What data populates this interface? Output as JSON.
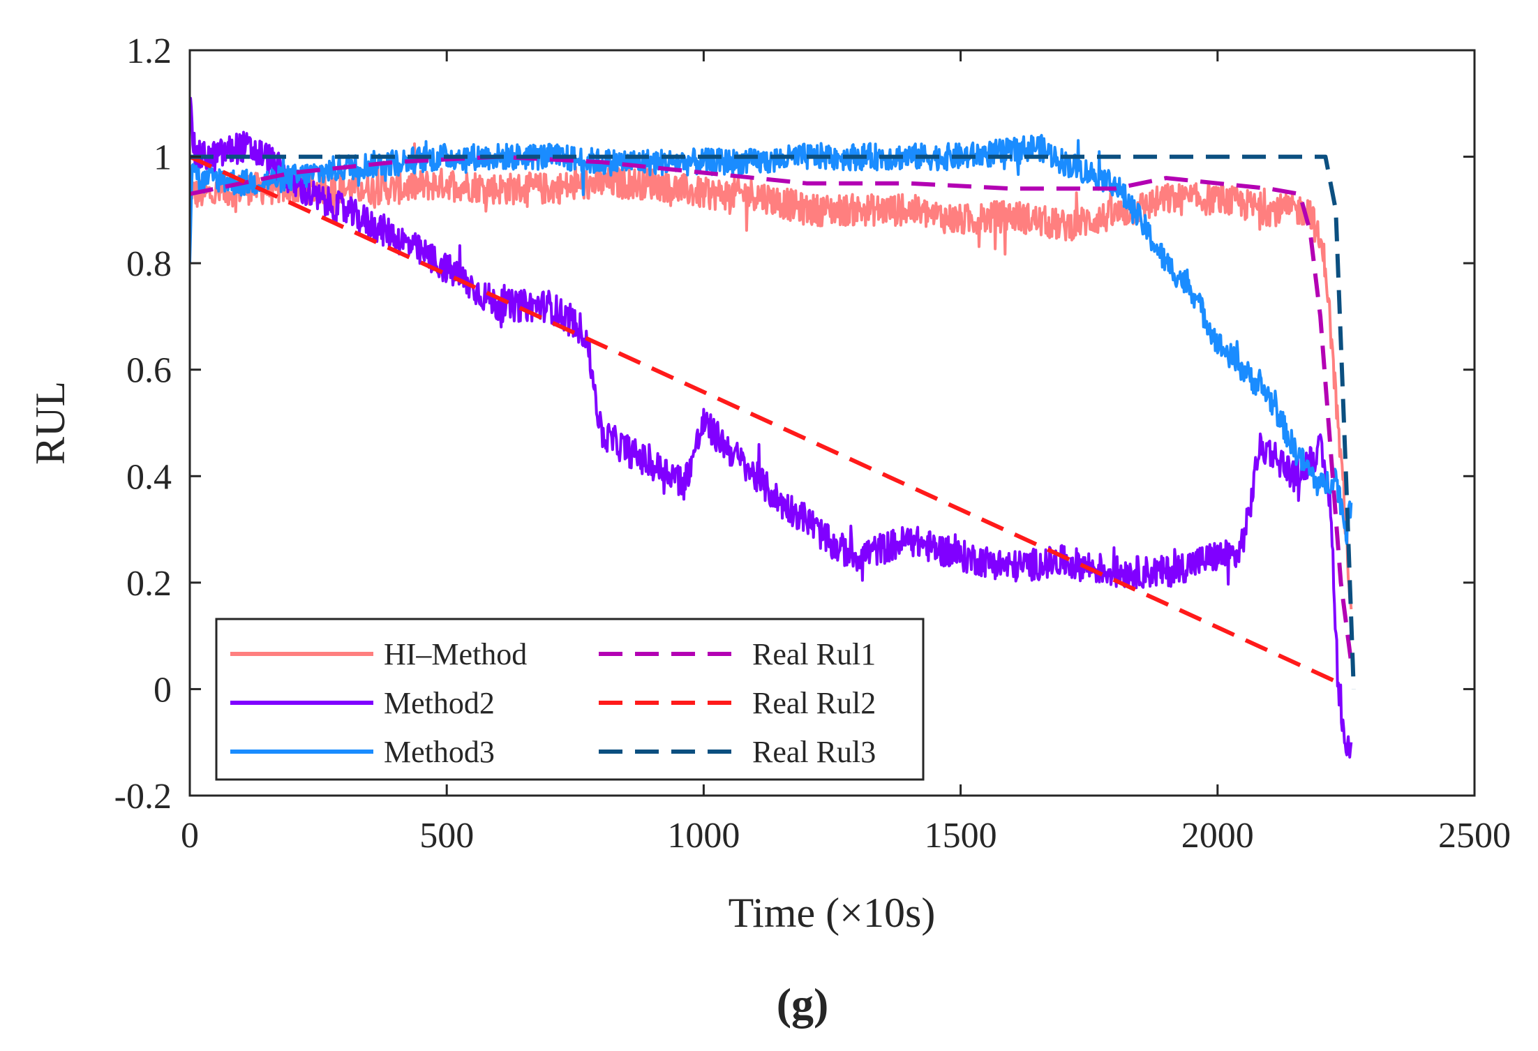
{
  "chart_data": {
    "type": "line",
    "title": "",
    "caption": "(g)",
    "xlabel": "Time (×10s)",
    "ylabel": "RUL",
    "xlim": [
      0,
      2500
    ],
    "ylim": [
      -0.2,
      1.2
    ],
    "xticks": [
      0,
      500,
      1000,
      1500,
      2000,
      2500
    ],
    "yticks": [
      -0.2,
      0,
      0.2,
      0.4,
      0.6,
      0.8,
      1,
      1.2
    ],
    "xtick_labels": [
      "0",
      "500",
      "1000",
      "1500",
      "2000",
      "2500"
    ],
    "ytick_labels": [
      "-0.2",
      "0",
      "0.2",
      "0.4",
      "0.6",
      "0.8",
      "1",
      "1.2"
    ],
    "grid": false,
    "legend_position": "bottom-left",
    "series": [
      {
        "name": "HI–Method",
        "style": "solid",
        "color": "#ff7f7f",
        "noise": 0.03,
        "x": [
          0,
          10,
          50,
          100,
          200,
          300,
          400,
          500,
          600,
          700,
          800,
          900,
          1000,
          1100,
          1200,
          1300,
          1400,
          1500,
          1600,
          1700,
          1800,
          1900,
          2000,
          2100,
          2180,
          2210,
          2230,
          2250,
          2260
        ],
        "y": [
          0.95,
          0.93,
          0.93,
          0.94,
          0.94,
          0.94,
          0.94,
          0.95,
          0.94,
          0.94,
          0.95,
          0.95,
          0.93,
          0.93,
          0.9,
          0.9,
          0.9,
          0.88,
          0.89,
          0.87,
          0.89,
          0.92,
          0.92,
          0.9,
          0.9,
          0.8,
          0.55,
          0.3,
          0.15
        ]
      },
      {
        "name": "Method2",
        "style": "solid",
        "color": "#8000ff",
        "noise": 0.03,
        "x": [
          0,
          10,
          50,
          100,
          150,
          200,
          250,
          300,
          400,
          500,
          600,
          700,
          770,
          790,
          800,
          850,
          900,
          950,
          960,
          1000,
          1050,
          1100,
          1150,
          1200,
          1250,
          1300,
          1400,
          1500,
          1600,
          1700,
          1800,
          1900,
          2000,
          2040,
          2060,
          2080,
          2100,
          2150,
          2200,
          2220,
          2235,
          2250,
          2260
        ],
        "y": [
          1.1,
          1.0,
          1.0,
          1.02,
          1.0,
          0.95,
          0.92,
          0.9,
          0.85,
          0.79,
          0.72,
          0.72,
          0.67,
          0.55,
          0.48,
          0.45,
          0.42,
          0.4,
          0.38,
          0.5,
          0.45,
          0.4,
          0.35,
          0.32,
          0.27,
          0.25,
          0.28,
          0.25,
          0.23,
          0.24,
          0.22,
          0.22,
          0.25,
          0.25,
          0.32,
          0.45,
          0.45,
          0.4,
          0.45,
          0.35,
          0.0,
          -0.12,
          -0.1
        ]
      },
      {
        "name": "Method3",
        "style": "solid",
        "color": "#1a8cff",
        "noise": 0.025,
        "x": [
          0,
          5,
          20,
          50,
          100,
          200,
          300,
          400,
          500,
          600,
          700,
          800,
          900,
          1000,
          1100,
          1200,
          1300,
          1400,
          1500,
          1600,
          1650,
          1700,
          1750,
          1800,
          1850,
          1900,
          1950,
          2000,
          2050,
          2100,
          2150,
          2200,
          2230,
          2250,
          2260
        ],
        "y": [
          0.82,
          1.0,
          0.95,
          0.96,
          0.95,
          0.96,
          0.98,
          0.99,
          1.0,
          1.0,
          1.0,
          0.99,
          0.99,
          0.99,
          0.99,
          1.0,
          1.0,
          1.0,
          1.0,
          1.01,
          1.02,
          0.99,
          0.97,
          0.95,
          0.88,
          0.8,
          0.75,
          0.65,
          0.6,
          0.55,
          0.45,
          0.38,
          0.4,
          0.3,
          0.35
        ]
      },
      {
        "name": "Real Rul1",
        "style": "dashed",
        "color": "#b300b3",
        "noise": 0,
        "x": [
          0,
          50,
          200,
          400,
          600,
          800,
          1000,
          1200,
          1400,
          1600,
          1800,
          1900,
          2000,
          2100,
          2160,
          2180,
          2200,
          2220,
          2240,
          2260
        ],
        "y": [
          0.93,
          0.94,
          0.97,
          0.99,
          1.0,
          0.99,
          0.97,
          0.95,
          0.95,
          0.94,
          0.94,
          0.96,
          0.95,
          0.94,
          0.93,
          0.86,
          0.7,
          0.45,
          0.2,
          0.05
        ]
      },
      {
        "name": "Real Rul2",
        "style": "dashed",
        "color": "#ff1a1a",
        "noise": 0,
        "x": [
          0,
          2240
        ],
        "y": [
          1.0,
          0.01
        ]
      },
      {
        "name": "Real Rul3",
        "style": "dashed",
        "color": "#0b4f80",
        "noise": 0,
        "x": [
          0,
          10,
          2210,
          2230,
          2250,
          2265
        ],
        "y": [
          1.0,
          1.0,
          1.0,
          0.9,
          0.4,
          0.0
        ]
      }
    ]
  }
}
